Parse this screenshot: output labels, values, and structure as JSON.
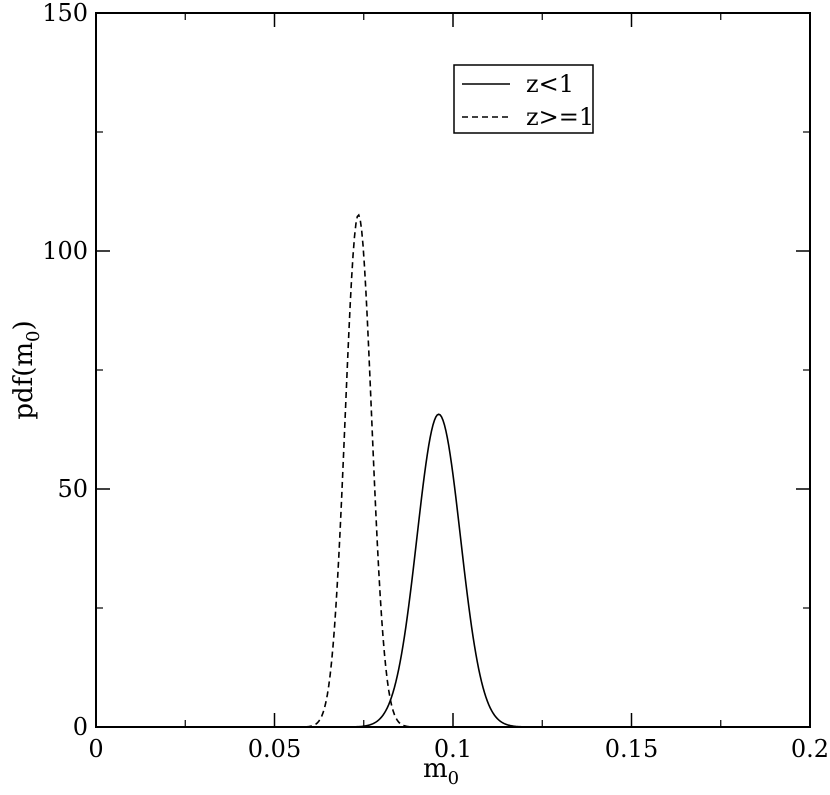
{
  "chart_data": {
    "type": "line",
    "title": "",
    "xlabel": {
      "base": "m",
      "sub": "0"
    },
    "ylabel": {
      "base": "pdf(m",
      "sub": "0",
      "suffix": ")"
    },
    "xlim": [
      0,
      0.2
    ],
    "ylim": [
      0,
      150
    ],
    "x_ticks": [
      {
        "value": 0,
        "label": "0"
      },
      {
        "value": 0.05,
        "label": "0.05"
      },
      {
        "value": 0.1,
        "label": "0.1"
      },
      {
        "value": 0.15,
        "label": "0.15"
      },
      {
        "value": 0.2,
        "label": "0.2"
      }
    ],
    "y_ticks": [
      {
        "value": 0,
        "label": "0"
      },
      {
        "value": 50,
        "label": "50"
      },
      {
        "value": 100,
        "label": "100"
      },
      {
        "value": 150,
        "label": "150"
      }
    ],
    "x_minor_step": 0.025,
    "y_minor_step": 25,
    "grid": false,
    "legend_position": "top-right",
    "series": [
      {
        "name": "z<1",
        "style": "solid",
        "peak_x": 0.096,
        "peak_y": 65.7,
        "sigma": 0.0061,
        "x": [
          0.07,
          0.075,
          0.08,
          0.084,
          0.088,
          0.09,
          0.092,
          0.094,
          0.096,
          0.098,
          0.1,
          0.102,
          0.104,
          0.108,
          0.112,
          0.116,
          0.12,
          0.125,
          0.13
        ],
        "values": [
          0.0075,
          0.18,
          2.1,
          9.9,
          28.0,
          40.4,
          52.7,
          61.8,
          65.7,
          61.8,
          52.7,
          40.4,
          28.0,
          9.9,
          2.1,
          0.29,
          0.02,
          0.0,
          0.0
        ]
      },
      {
        "name": "z>=1",
        "style": "dashed",
        "peak_x": 0.0735,
        "peak_y": 107.6,
        "sigma": 0.0037,
        "x": [
          0.058,
          0.062,
          0.065,
          0.067,
          0.069,
          0.071,
          0.0725,
          0.0735,
          0.0745,
          0.076,
          0.078,
          0.08,
          0.082,
          0.085,
          0.089
        ],
        "values": [
          0.0,
          0.8,
          7.9,
          23.2,
          51.8,
          85.6,
          104.0,
          107.6,
          104.0,
          85.6,
          51.8,
          23.2,
          7.9,
          0.8,
          0.0
        ]
      }
    ]
  }
}
